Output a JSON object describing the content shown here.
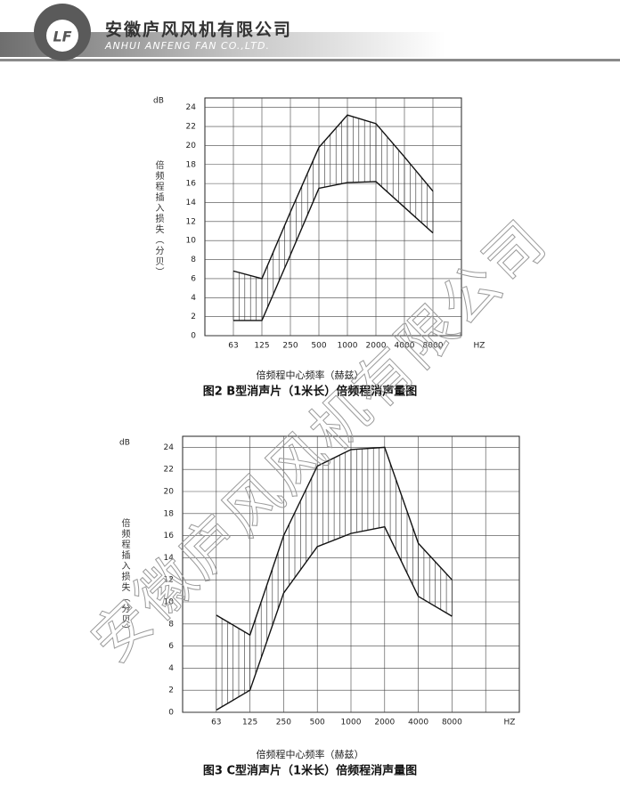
{
  "header": {
    "company_cn": "安徽庐风风机有限公司",
    "company_en": "ANHUI ANFENG FAN CO.,LTD.",
    "logo": "LF"
  },
  "watermark": "安徽庐风风机有限公司",
  "chart_data": [
    {
      "type": "range",
      "ylabel_unit": "dB",
      "ylabel": "倍频程插入损失（分贝）",
      "xlabel": "倍频程中心频率（赫兹）",
      "x_unit": "HZ",
      "caption": "图2 B型消声片（1米长）倍频程消声量图",
      "categories": [
        "63",
        "125",
        "250",
        "500",
        "1000",
        "2000",
        "4000",
        "8000"
      ],
      "series": [
        {
          "color": "#111111",
          "values": [
            6.8,
            6.0,
            13.0,
            19.8,
            23.2,
            22.3,
            18.8,
            15.2
          ]
        },
        {
          "color": "#111111",
          "values": [
            1.6,
            1.6,
            8.5,
            15.5,
            16.1,
            16.2,
            13.5,
            10.8
          ]
        }
      ],
      "ylim": [
        0,
        25
      ],
      "yticks": [
        0,
        2,
        4,
        6,
        8,
        10,
        12,
        14,
        16,
        18,
        20,
        22,
        24
      ],
      "grid": true
    },
    {
      "type": "range",
      "ylabel_unit": "dB",
      "ylabel": "倍频程插入损失（分贝）",
      "xlabel": "倍频程中心频率（赫兹）",
      "x_unit": "HZ",
      "caption": "图3 C型消声片（1米长）倍频程消声量图",
      "categories": [
        "63",
        "125",
        "250",
        "500",
        "1000",
        "2000",
        "4000",
        "8000"
      ],
      "series": [
        {
          "color": "#111111",
          "values": [
            8.8,
            7.0,
            16.0,
            22.3,
            23.8,
            24.0,
            15.3,
            12.0
          ]
        },
        {
          "color": "#111111",
          "values": [
            0.2,
            2.0,
            10.8,
            15.0,
            16.2,
            16.8,
            10.5,
            8.7
          ]
        }
      ],
      "ylim": [
        0,
        25
      ],
      "yticks": [
        0,
        2,
        4,
        6,
        8,
        10,
        12,
        14,
        16,
        18,
        20,
        22,
        24
      ],
      "grid": true
    }
  ]
}
